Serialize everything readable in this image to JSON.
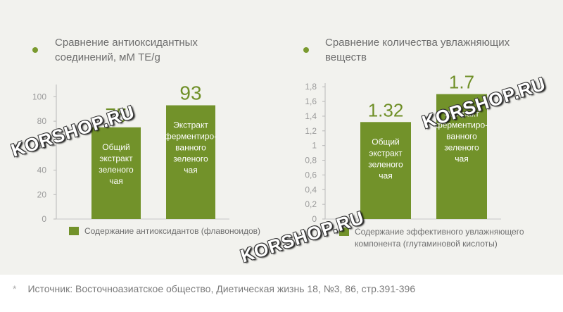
{
  "panel": {
    "left_heading": "Сравнение антиоксидантных\nсоединений, мМ  TE/g",
    "right_heading": "Сравнение количества увлажняющих\nвеществ"
  },
  "chart_data": [
    {
      "type": "bar",
      "title": "Сравнение антиоксидантных соединений, мМ  TE/g",
      "categories": [
        "Общий экстракт зеленого чая",
        "Экстракт ферментиро-ванного зеленого чая"
      ],
      "values": [
        75,
        93
      ],
      "value_labels": [
        "75",
        "93"
      ],
      "ylim": [
        0,
        110
      ],
      "yticks": [
        "0",
        "20",
        "40",
        "60",
        "80",
        "100"
      ],
      "legend": "Содержание антиоксидантов (флавоноидов)",
      "legend_position": "bottom",
      "bar_color": "#72922a"
    },
    {
      "type": "bar",
      "title": "Сравнение количества увлажняющих веществ",
      "categories": [
        "Общий экстракт зеленого чая",
        "Экстракт ферментиро-ванного зеленого чая"
      ],
      "values": [
        1.32,
        1.7
      ],
      "value_labels": [
        "1.32",
        "1.7"
      ],
      "ylim": [
        0,
        1.85
      ],
      "yticks": [
        "0",
        "0,2",
        "0,4",
        "0,6",
        "0,8",
        "1",
        "1,2",
        "1,4",
        "1,6",
        "1,8"
      ],
      "legend": "Содержание эффективного увлажняющего компонента (глутаминовой кислоты)",
      "legend_position": "bottom",
      "bar_color": "#72922a"
    }
  ],
  "bar_text": {
    "c1b1": [
      "Общий",
      "экстракт",
      "зеленого",
      "чая"
    ],
    "c1b2": [
      "Экстракт",
      "ферментиро-",
      "ванного",
      "зеленого",
      "чая"
    ],
    "c2b1": [
      "Общий",
      "экстракт",
      "зеленого",
      "чая"
    ],
    "c2b2": [
      "Экстракт",
      "ферментиро-",
      "ванного",
      "зеленого",
      "чая"
    ]
  },
  "legend_lines": {
    "chart2": [
      "Содержание эффективного увлажняющего",
      "компонента (глутаминовой кислоты)"
    ]
  },
  "watermark": "KORSHOP.RU",
  "source": "Источник: Восточноазиатское общество, Диетическая жизнь 18, №3, 86, стр.391-396",
  "source_marker": "*"
}
